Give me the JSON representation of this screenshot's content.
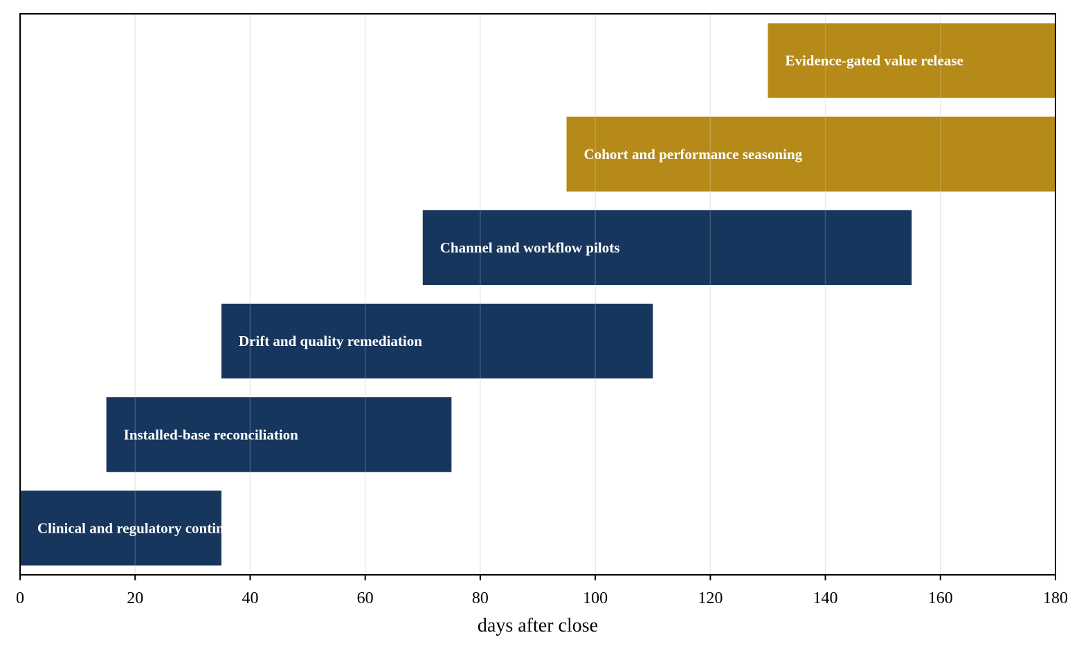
{
  "chart_data": {
    "type": "bar",
    "orientation": "horizontal",
    "title": "",
    "xlabel": "days after close",
    "ylabel": "",
    "xlim": [
      0,
      180
    ],
    "xticks": [
      0,
      20,
      40,
      60,
      80,
      100,
      120,
      140,
      160,
      180
    ],
    "grid": "vertical",
    "colors": {
      "primary": "#17365d",
      "secondary": "#b58a18"
    },
    "bars": [
      {
        "label": "Clinical and regulatory continuity",
        "start": 0,
        "end": 35,
        "group": "primary"
      },
      {
        "label": "Installed-base reconciliation",
        "start": 15,
        "end": 75,
        "group": "primary"
      },
      {
        "label": "Drift and quality remediation",
        "start": 35,
        "end": 110,
        "group": "primary"
      },
      {
        "label": "Channel and workflow pilots",
        "start": 70,
        "end": 155,
        "group": "primary"
      },
      {
        "label": "Cohort and performance seasoning",
        "start": 95,
        "end": 180,
        "group": "secondary"
      },
      {
        "label": "Evidence-gated value release",
        "start": 130,
        "end": 180,
        "group": "secondary"
      }
    ]
  }
}
